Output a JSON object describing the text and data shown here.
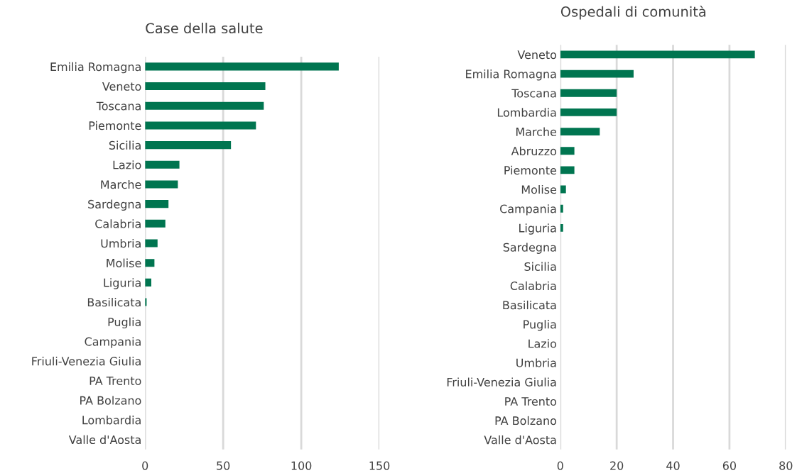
{
  "chart_data": [
    {
      "type": "bar",
      "orientation": "horizontal",
      "title": "Case della salute",
      "categories": [
        "Emilia Romagna",
        "Veneto",
        "Toscana",
        "Piemonte",
        "Sicilia",
        "Lazio",
        "Marche",
        "Sardegna",
        "Calabria",
        "Umbria",
        "Molise",
        "Liguria",
        "Basilicata",
        "Puglia",
        "Campania",
        "Friuli-Venezia Giulia",
        "PA Trento",
        "PA Bolzano",
        "Lombardia",
        "Valle d'Aosta"
      ],
      "values": [
        124,
        77,
        76,
        71,
        55,
        22,
        21,
        15,
        13,
        8,
        6,
        4,
        1,
        0,
        0,
        0,
        0,
        0,
        0,
        0
      ],
      "color": "#007550",
      "xlim": [
        0,
        150
      ],
      "xticks": [
        0,
        50,
        100,
        150
      ],
      "grid": "x",
      "legend": false
    },
    {
      "type": "bar",
      "orientation": "horizontal",
      "title": "Ospedali di comunità",
      "categories": [
        "Veneto",
        "Emilia Romagna",
        "Toscana",
        "Lombardia",
        "Marche",
        "Abruzzo",
        "Piemonte",
        "Molise",
        "Campania",
        "Liguria",
        "Sardegna",
        "Sicilia",
        "Calabria",
        "Basilicata",
        "Puglia",
        "Lazio",
        "Umbria",
        "Friuli-Venezia Giulia",
        "PA Trento",
        "PA Bolzano",
        "Valle d'Aosta"
      ],
      "values": [
        69,
        26,
        20,
        20,
        14,
        5,
        5,
        2,
        1,
        1,
        0,
        0,
        0,
        0,
        0,
        0,
        0,
        0,
        0,
        0,
        0
      ],
      "color": "#007550",
      "xlim": [
        0,
        80
      ],
      "xticks": [
        0,
        20,
        40,
        60,
        80
      ],
      "grid": "x",
      "legend": false
    }
  ]
}
